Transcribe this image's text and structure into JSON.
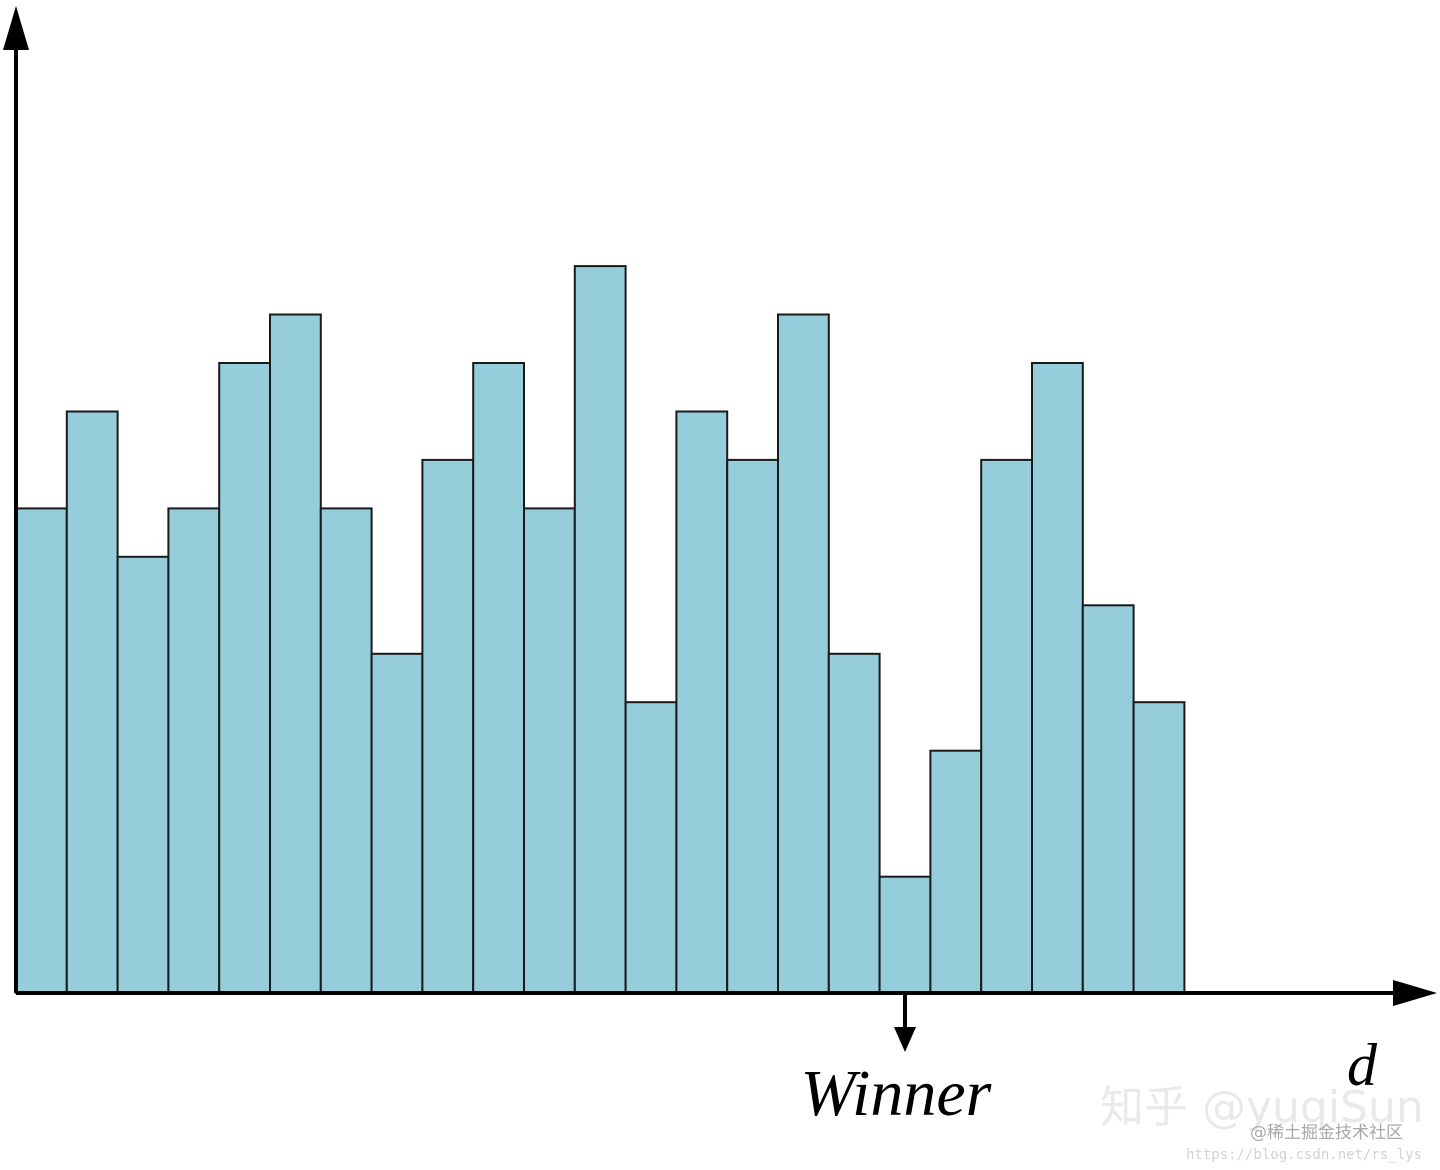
{
  "chart_data": {
    "type": "bar",
    "xlabel": "d",
    "ylabel": "",
    "values": [
      10,
      12,
      9,
      10,
      13,
      14,
      10,
      7,
      11,
      13,
      10,
      15,
      6,
      12,
      11,
      14,
      7,
      2.4,
      5,
      11,
      13,
      8,
      6
    ],
    "ylim": [
      0,
      19.5
    ],
    "annotation": {
      "text": "Winner",
      "target_index": 17
    },
    "colors": {
      "bar_fill": "#96cddb",
      "bar_stroke": "#1a1a1a",
      "axis": "#000000"
    },
    "grid": false,
    "axis_ticks": false
  },
  "watermarks": {
    "zhihu": "知乎 @yuqiSun",
    "juejin": "@稀土掘金技术社区",
    "url": "https://blog.csdn.net/rs_lys"
  }
}
